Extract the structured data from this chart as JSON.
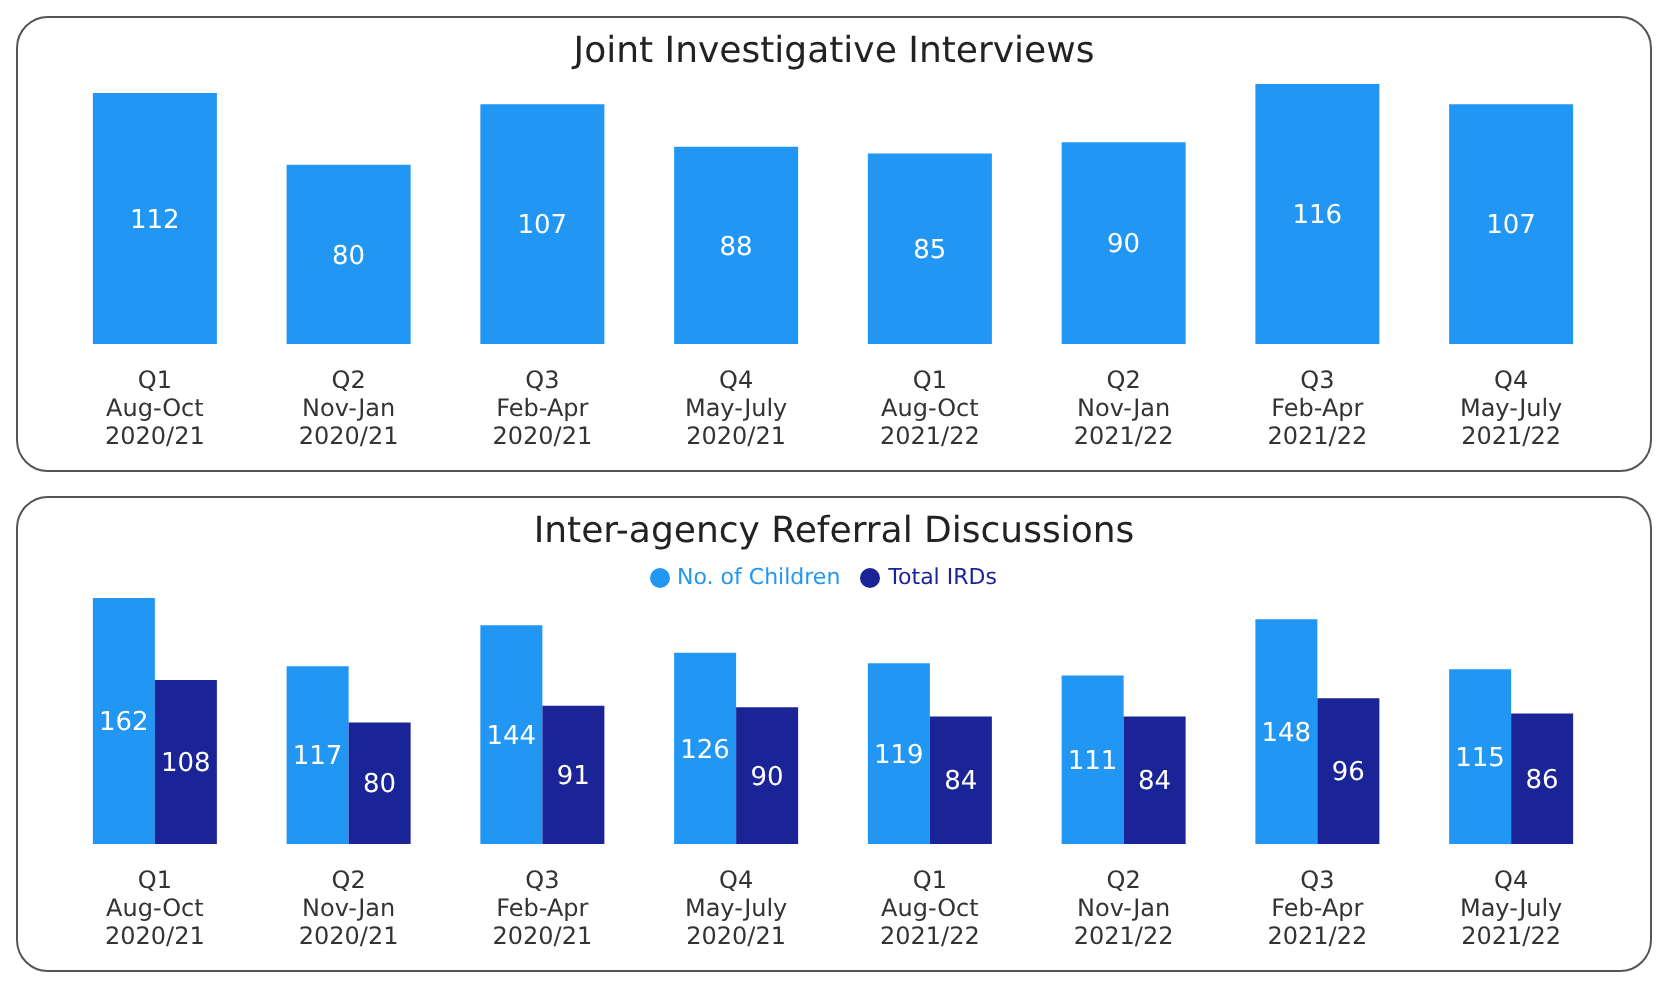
{
  "chart_data": [
    {
      "type": "bar",
      "title": "Joint Investigative Interviews",
      "categories": [
        "Q1\nAug-Oct\n2020/21",
        "Q2\nNov-Jan\n2020/21",
        "Q3\nFeb-Apr\n2020/21",
        "Q4\nMay-July\n2020/21",
        "Q1\nAug-Oct\n2021/22",
        "Q2\nNov-Jan\n2021/22",
        "Q3\nFeb-Apr\n2021/22",
        "Q4\nMay-July\n2021/22"
      ],
      "values": [
        112,
        80,
        107,
        88,
        85,
        90,
        116,
        107
      ],
      "color": "#2196f3",
      "data_labels": true,
      "tick_labels": "x"
    },
    {
      "type": "bar",
      "title": "Inter-agency Referral Discussions",
      "categories": [
        "Q1\nAug-Oct\n2020/21",
        "Q2\nNov-Jan\n2020/21",
        "Q3\nFeb-Apr\n2020/21",
        "Q4\nMay-July\n2020/21",
        "Q1\nAug-Oct\n2021/22",
        "Q2\nNov-Jan\n2021/22",
        "Q3\nFeb-Apr\n2021/22",
        "Q4\nMay-July\n2021/22"
      ],
      "series": [
        {
          "name": "No. of Children",
          "color": "#2196f3",
          "values": [
            162,
            117,
            144,
            126,
            119,
            111,
            148,
            115
          ]
        },
        {
          "name": "Total IRDs",
          "color": "#1a2496",
          "values": [
            108,
            80,
            91,
            90,
            84,
            84,
            96,
            86
          ]
        }
      ],
      "data_labels": true,
      "legend": "top",
      "tick_labels": "x"
    }
  ]
}
